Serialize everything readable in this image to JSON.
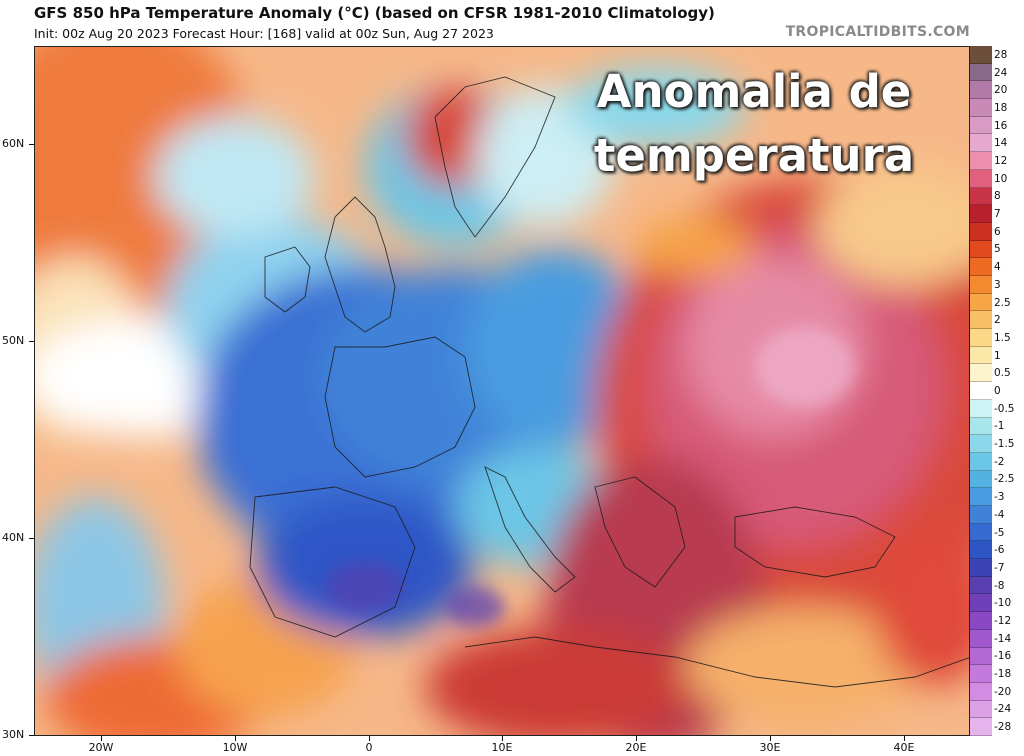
{
  "header": {
    "title": "GFS 850 hPa Temperature Anomaly (°C) (based on CFSR 1981-2010 Climatology)",
    "subtitle": "Init: 00z Aug 20 2023   Forecast Hour: [168]   valid at 00z Sun, Aug 27 2023",
    "brand": "TROPICALTIDBITS.COM"
  },
  "overlay": {
    "line1": "Anomalia de",
    "line2": "temperatura"
  },
  "axes": {
    "lat_labels": [
      "60N",
      "50N",
      "40N",
      "30N"
    ],
    "lon_labels": [
      "20W",
      "10W",
      "0",
      "10E",
      "20E",
      "30E",
      "40E"
    ]
  },
  "legend": {
    "labels": [
      "28",
      "24",
      "20",
      "18",
      "16",
      "14",
      "12",
      "10",
      "8",
      "7",
      "6",
      "5",
      "4",
      "3",
      "2.5",
      "2",
      "1.5",
      "1",
      "0.5",
      "0",
      "-0.5",
      "-1",
      "-1.5",
      "-2",
      "-2.5",
      "-3",
      "-4",
      "-5",
      "-6",
      "-7",
      "-8",
      "-10",
      "-12",
      "-14",
      "-16",
      "-18",
      "-20",
      "-24",
      "-28"
    ],
    "colors": [
      "#6b4f3a",
      "#8a6a8a",
      "#b27aa8",
      "#c98ab8",
      "#d99ac6",
      "#e6a8cf",
      "#ee8fb0",
      "#e0607e",
      "#c83448",
      "#b8202e",
      "#cc3020",
      "#e04a1e",
      "#ec6a22",
      "#f38a30",
      "#f6a646",
      "#f8c066",
      "#fad888",
      "#fbe8a8",
      "#fcf4cc",
      "#ffffff",
      "#cdf3f5",
      "#a8e6ee",
      "#8ad8ea",
      "#6cc6e6",
      "#54b2e2",
      "#4a9ce0",
      "#3f82d8",
      "#366ad0",
      "#2e55c4",
      "#3a44b4",
      "#5840b0",
      "#7040b8",
      "#8a48c4",
      "#a058cc",
      "#b468d4",
      "#c47adc",
      "#d28ce2",
      "#dca0e6",
      "#e6b4ec"
    ]
  },
  "map": {
    "palette": {
      "ocean_warm": "#f3a36a",
      "ocean_cool": "#9fd6f0",
      "cold_core": "#2f56c6",
      "hot_core": "#c8404e",
      "border_color": "#1a1a1a"
    }
  }
}
